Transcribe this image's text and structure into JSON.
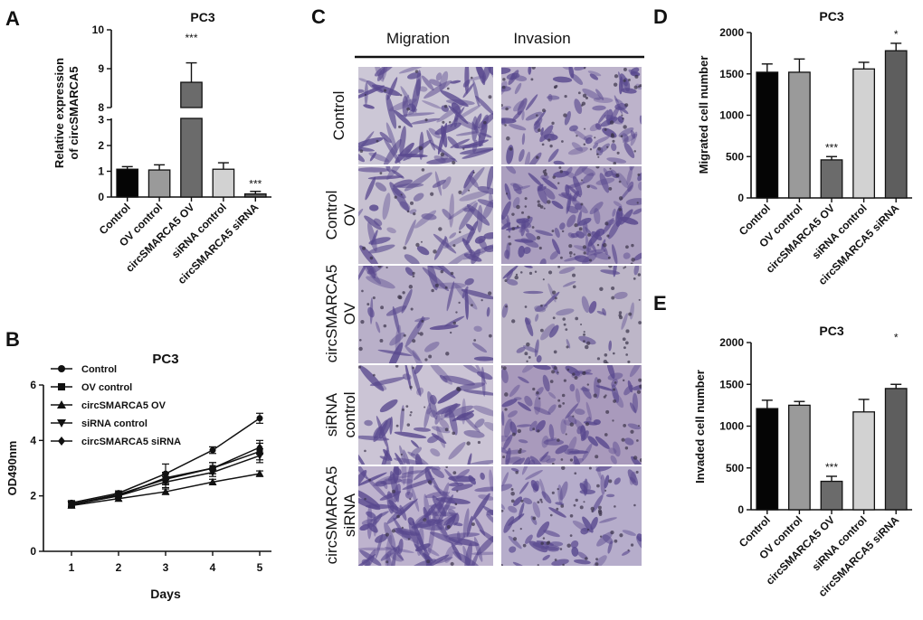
{
  "panels": {
    "A": {
      "letter": "A",
      "title": "PC3",
      "ylabel_line1": "Relative expression",
      "ylabel_line2": "of circSMARCA5"
    },
    "B": {
      "letter": "B",
      "title": "PC3",
      "ylabel": "OD490nm",
      "xlabel": "Days"
    },
    "C": {
      "letter": "C",
      "col1": "Migration",
      "col2": "Invasion"
    },
    "D": {
      "letter": "D",
      "title": "PC3",
      "ylabel": "Migrated cell number"
    },
    "E": {
      "letter": "E",
      "title": "PC3",
      "ylabel": "Invaded cell number"
    }
  },
  "micrograph_rows": [
    {
      "line1": "Control",
      "line2": ""
    },
    {
      "line1": "Control",
      "line2": "OV"
    },
    {
      "line1": "circSMARCA5",
      "line2": "OV"
    },
    {
      "line1": "siRNA",
      "line2": "control"
    },
    {
      "line1": "circSMARCA5",
      "line2": "siRNA"
    }
  ],
  "colors": {
    "bars": [
      "#050505",
      "#9a9a9a",
      "#6b6b6b",
      "#d2d2d2",
      "#5e5e5e"
    ],
    "stain_dark": "#4b3a86",
    "stain_light": "#bfb8cc"
  },
  "chart_data": [
    {
      "panel": "A",
      "type": "bar",
      "title": "PC3",
      "ylabel": "Relative expression of circSMARCA5",
      "broken_axis": true,
      "categories": [
        "Control",
        "OV control",
        "circSMARCA5 OV",
        "siRNA control",
        "circSMARCA5 siRNA"
      ],
      "values": [
        1.08,
        1.05,
        8.65,
        1.08,
        0.12
      ],
      "errors": [
        0.1,
        0.2,
        0.5,
        0.25,
        0.1
      ],
      "significance": [
        "",
        "",
        "***",
        "",
        "***"
      ],
      "yticks_lower": [
        "0",
        "1",
        "2",
        "3"
      ],
      "yticks_upper": [
        "8",
        "9",
        "10"
      ],
      "ylim": [
        0,
        10
      ]
    },
    {
      "panel": "B",
      "type": "line",
      "title": "PC3",
      "xlabel": "Days",
      "ylabel": "OD490nm",
      "x": [
        1,
        2,
        3,
        4,
        5
      ],
      "xticks": [
        "1",
        "2",
        "3",
        "4",
        "5"
      ],
      "yticks": [
        "0",
        "2",
        "4",
        "6"
      ],
      "ylim": [
        0,
        6
      ],
      "series": [
        {
          "name": "Control",
          "marker": "circle",
          "values": [
            1.75,
            2.1,
            2.8,
            3.65,
            4.8
          ],
          "errors": [
            0.08,
            0.08,
            0.35,
            0.12,
            0.18
          ]
        },
        {
          "name": "OV control",
          "marker": "square",
          "values": [
            1.7,
            2.05,
            2.6,
            3.0,
            3.6
          ],
          "errors": [
            0.08,
            0.08,
            0.2,
            0.2,
            0.3
          ]
        },
        {
          "name": "circSMARCA5 OV",
          "marker": "triangle-up",
          "values": [
            1.65,
            1.9,
            2.15,
            2.5,
            2.8
          ],
          "errors": [
            0.08,
            0.08,
            0.1,
            0.1,
            0.1
          ]
        },
        {
          "name": "siRNA control",
          "marker": "triangle-down",
          "values": [
            1.7,
            2.0,
            2.5,
            2.85,
            3.45
          ],
          "errors": [
            0.08,
            0.08,
            0.2,
            0.15,
            0.25
          ]
        },
        {
          "name": "circSMARCA5 siRNA",
          "marker": "diamond",
          "values": [
            1.68,
            2.0,
            2.65,
            3.0,
            3.75
          ],
          "errors": [
            0.08,
            0.08,
            0.2,
            0.2,
            0.25
          ]
        }
      ]
    },
    {
      "panel": "D",
      "type": "bar",
      "title": "PC3",
      "ylabel": "Migrated cell number",
      "categories": [
        "Control",
        "OV control",
        "circSMARCA5 OV",
        "siRNA control",
        "circSMARCA5 siRNA"
      ],
      "values": [
        1520,
        1520,
        460,
        1560,
        1780
      ],
      "errors": [
        100,
        160,
        40,
        80,
        90
      ],
      "significance": [
        "",
        "",
        "***",
        "",
        "*"
      ],
      "yticks": [
        "0",
        "500",
        "1000",
        "1500",
        "2000"
      ],
      "ylim": [
        0,
        2000
      ]
    },
    {
      "panel": "E",
      "type": "bar",
      "title": "PC3",
      "ylabel": "Invaded cell number",
      "categories": [
        "Control",
        "OV control",
        "circSMARCA5 OV",
        "siRNA control",
        "circSMARCA5 siRNA"
      ],
      "values": [
        1210,
        1250,
        340,
        1170,
        1450
      ],
      "errors": [
        100,
        45,
        60,
        150,
        50
      ],
      "significance": [
        "",
        "",
        "***",
        "",
        "*"
      ],
      "yticks": [
        "0",
        "500",
        "1000",
        "1500",
        "2000"
      ],
      "ylim": [
        0,
        2000
      ]
    }
  ]
}
